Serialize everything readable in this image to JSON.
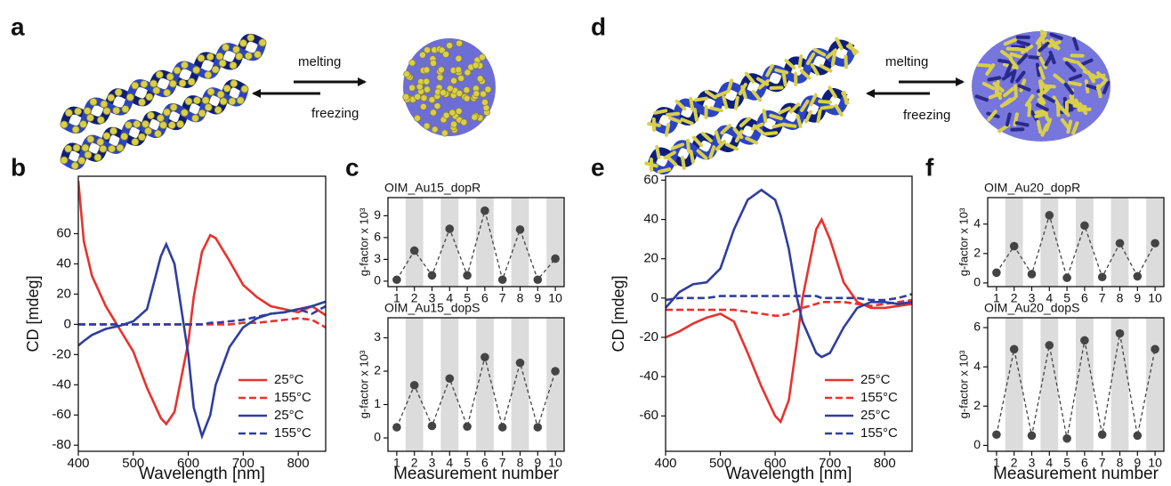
{
  "panel_labels": [
    "a",
    "b",
    "c",
    "d",
    "e",
    "f"
  ],
  "schemes": [
    {
      "top_label": "melting",
      "bottom_label": "freezing"
    },
    {
      "top_label": "melting",
      "bottom_label": "freezing"
    }
  ],
  "chart_data": [
    {
      "type": "line",
      "xlabel": "Wavelength [nm]",
      "ylabel": "CD [mdeg]",
      "x": [
        400,
        410,
        425,
        450,
        475,
        500,
        525,
        550,
        560,
        575,
        600,
        610,
        625,
        640,
        650,
        675,
        700,
        725,
        750,
        775,
        800,
        825,
        850
      ],
      "series": [
        {
          "name": "25°C",
          "color": "#e8322d",
          "line_style": "solid",
          "values": [
            95,
            55,
            32,
            12,
            -3,
            -18,
            -42,
            -62,
            -66,
            -58,
            -12,
            18,
            48,
            59,
            57,
            42,
            26,
            18,
            12,
            10,
            8,
            12,
            6
          ]
        },
        {
          "name": "155°C",
          "color": "#e8322d",
          "line_style": "dashed",
          "values": [
            0,
            0,
            0,
            0,
            0,
            0,
            0,
            0,
            0,
            0,
            0,
            0,
            0,
            0,
            0,
            0,
            1,
            1,
            2,
            3,
            4,
            3,
            -2
          ]
        },
        {
          "name": "25°C",
          "color": "#2e3ea0",
          "line_style": "solid",
          "values": [
            -14,
            -11,
            -7,
            -3,
            -1,
            2,
            10,
            45,
            53,
            40,
            -20,
            -55,
            -74,
            -60,
            -40,
            -15,
            -2,
            4,
            7,
            8,
            10,
            12,
            15
          ]
        },
        {
          "name": "155°C",
          "color": "#2e3ea0",
          "line_style": "dashed",
          "values": [
            0,
            0,
            0,
            0,
            0,
            0,
            0,
            0,
            0,
            0,
            0,
            0,
            0,
            1,
            1,
            2,
            3,
            5,
            7,
            8,
            10,
            7,
            12
          ]
        }
      ],
      "xlim": [
        400,
        850
      ],
      "xticks": [
        400,
        500,
        600,
        700,
        800
      ],
      "ylim": [
        -84,
        98
      ],
      "yticks": [
        -80,
        -60,
        -40,
        -20,
        0,
        20,
        40,
        60
      ],
      "legend": "lower right"
    },
    {
      "type": "line",
      "title": "OIM_Au15_dopR",
      "ylabel": "g-factor x 10³",
      "x": [
        1,
        2,
        3,
        4,
        5,
        6,
        7,
        8,
        9,
        10
      ],
      "series": [
        {
          "color": "#444444",
          "line_style": "dashed",
          "markers": true,
          "values": [
            0.2,
            4.2,
            0.8,
            7.2,
            0.8,
            9.7,
            0.2,
            7.1,
            0.2,
            3.1
          ]
        }
      ],
      "xlim": [
        0.5,
        10.5
      ],
      "xticks": [
        1,
        2,
        3,
        4,
        5,
        6,
        7,
        8,
        9,
        10
      ],
      "ylim": [
        -0.75,
        11.5
      ],
      "yticks": [
        0,
        3,
        6,
        9
      ],
      "band_shading": true
    },
    {
      "type": "line",
      "title": "OIM_Au15_dopS",
      "ylabel": "g-factor x 10³",
      "xlabel": "Measurement number",
      "x": [
        1,
        2,
        3,
        4,
        5,
        6,
        7,
        8,
        9,
        10
      ],
      "series": [
        {
          "color": "#444444",
          "line_style": "dashed",
          "markers": true,
          "values": [
            0.32,
            1.58,
            0.36,
            1.78,
            0.34,
            2.42,
            0.32,
            2.25,
            0.32,
            2.0
          ]
        }
      ],
      "xlim": [
        0.5,
        10.5
      ],
      "xticks": [
        1,
        2,
        3,
        4,
        5,
        6,
        7,
        8,
        9,
        10
      ],
      "ylim": [
        -0.4,
        3.6
      ],
      "yticks": [
        0,
        1,
        2,
        3
      ],
      "band_shading": true
    },
    {
      "type": "line",
      "xlabel": "Wavelength [nm]",
      "ylabel": "CD [mdeg]",
      "x": [
        400,
        425,
        450,
        475,
        500,
        525,
        550,
        575,
        600,
        610,
        625,
        640,
        650,
        675,
        685,
        700,
        725,
        750,
        775,
        800,
        825,
        850
      ],
      "series": [
        {
          "name": "25°C",
          "color": "#e8322d",
          "line_style": "solid",
          "values": [
            -20,
            -17,
            -13,
            -10,
            -8,
            -12,
            -28,
            -45,
            -60,
            -63,
            -52,
            -22,
            0,
            35,
            40,
            30,
            8,
            -2,
            -5,
            -5,
            -4,
            -3
          ]
        },
        {
          "name": "155°C",
          "color": "#e8322d",
          "line_style": "dashed",
          "values": [
            -6,
            -6,
            -6,
            -6,
            -6,
            -6,
            -7,
            -8,
            -9,
            -9,
            -8,
            -6,
            -5,
            -3,
            -2,
            -2,
            -2,
            -3,
            -4,
            -3,
            -2,
            -1
          ]
        },
        {
          "name": "25°C",
          "color": "#2e3ea0",
          "line_style": "solid",
          "values": [
            -5,
            3,
            7,
            8,
            15,
            35,
            50,
            55,
            50,
            42,
            25,
            0,
            -12,
            -28,
            -30,
            -28,
            -15,
            -5,
            -2,
            -2,
            -3,
            -2
          ]
        },
        {
          "name": "155°C",
          "color": "#2e3ea0",
          "line_style": "dashed",
          "values": [
            -1,
            0,
            0,
            0,
            1,
            1,
            1,
            1,
            1,
            1,
            1,
            1,
            1,
            1,
            0,
            0,
            0,
            0,
            -1,
            -1,
            0,
            2
          ]
        }
      ],
      "xlim": [
        400,
        850
      ],
      "xticks": [
        400,
        500,
        600,
        700,
        800
      ],
      "ylim": [
        -78,
        62
      ],
      "yticks": [
        -60,
        -40,
        -20,
        0,
        20,
        40,
        60
      ],
      "legend": "lower right"
    },
    {
      "type": "line",
      "title": "OIM_Au20_dopR",
      "ylabel": "g-factor x 10³",
      "x": [
        1,
        2,
        3,
        4,
        5,
        6,
        7,
        8,
        9,
        10
      ],
      "series": [
        {
          "color": "#444444",
          "line_style": "dashed",
          "markers": true,
          "values": [
            0.7,
            2.5,
            0.6,
            4.6,
            0.35,
            3.9,
            0.4,
            2.7,
            0.45,
            2.7
          ]
        }
      ],
      "xlim": [
        0.5,
        10.5
      ],
      "xticks": [
        1,
        2,
        3,
        4,
        5,
        6,
        7,
        8,
        9,
        10
      ],
      "ylim": [
        -0.25,
        5.8
      ],
      "yticks": [
        0,
        2,
        4
      ],
      "band_shading": true
    },
    {
      "type": "line",
      "title": "OIM_Au20_dopS",
      "ylabel": "g-factor x 10³",
      "xlabel": "Measurement number",
      "x": [
        1,
        2,
        3,
        4,
        5,
        6,
        7,
        8,
        9,
        10
      ],
      "series": [
        {
          "color": "#444444",
          "line_style": "dashed",
          "markers": true,
          "values": [
            0.55,
            4.9,
            0.5,
            5.1,
            0.35,
            5.35,
            0.55,
            5.7,
            0.5,
            4.9
          ]
        }
      ],
      "xlim": [
        0.5,
        10.5
      ],
      "xticks": [
        1,
        2,
        3,
        4,
        5,
        6,
        7,
        8,
        9,
        10
      ],
      "ylim": [
        -0.3,
        6.5
      ],
      "yticks": [
        0,
        2,
        4,
        6
      ],
      "band_shading": true
    }
  ]
}
